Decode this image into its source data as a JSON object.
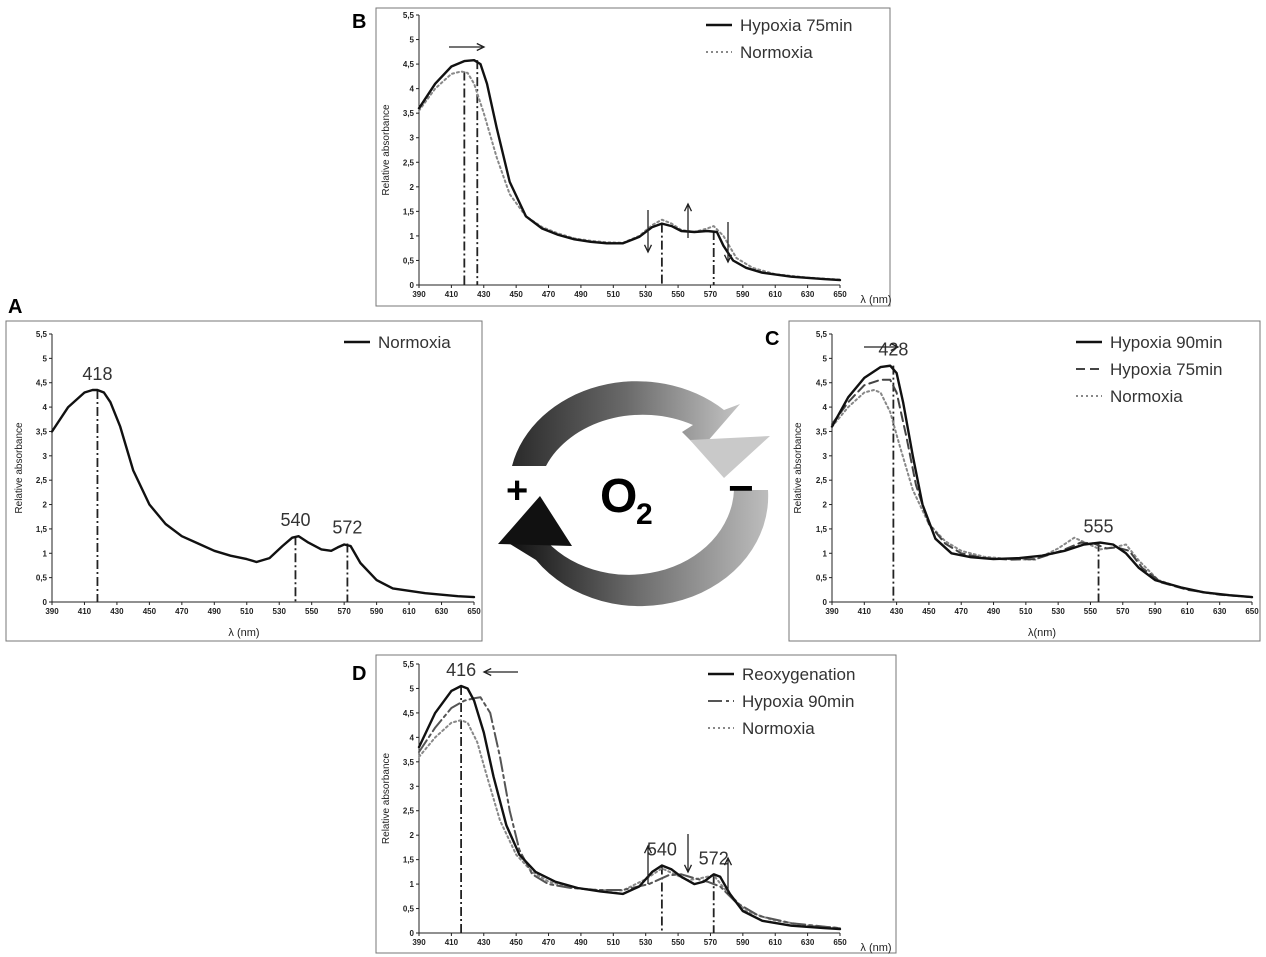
{
  "center": {
    "plus": "+",
    "minus": "−",
    "o2_main": "O",
    "o2_sub": "2"
  },
  "chart_data": [
    {
      "type": "line",
      "panel": "A",
      "xlabel": "λ (nm)",
      "ylabel": "Relative absorbance",
      "xlim": [
        390,
        650
      ],
      "ylim": [
        0,
        5.5
      ],
      "xticks": [
        "390",
        "410",
        "430",
        "450",
        "470",
        "490",
        "510",
        "530",
        "550",
        "570",
        "590",
        "610",
        "630",
        "650"
      ],
      "yticks": [
        "0",
        "0,5",
        "1",
        "1,5",
        "2",
        "2,5",
        "3",
        "3,5",
        "4",
        "4,5",
        "5",
        "5,5"
      ],
      "legend": "top-right",
      "series": [
        {
          "name": "Normoxia",
          "style": "solid",
          "color": "#111111",
          "x": [
            390,
            400,
            410,
            415,
            418,
            422,
            426,
            432,
            440,
            450,
            460,
            470,
            480,
            490,
            500,
            510,
            516,
            524,
            532,
            538,
            542,
            548,
            556,
            562,
            566,
            570,
            574,
            580,
            590,
            600,
            620,
            640,
            650
          ],
          "y": [
            3.5,
            4.0,
            4.3,
            4.35,
            4.35,
            4.3,
            4.1,
            3.6,
            2.7,
            2.0,
            1.6,
            1.35,
            1.2,
            1.05,
            0.95,
            0.88,
            0.82,
            0.9,
            1.15,
            1.32,
            1.35,
            1.22,
            1.08,
            1.05,
            1.12,
            1.18,
            1.15,
            0.8,
            0.45,
            0.28,
            0.18,
            0.12,
            0.1
          ]
        }
      ],
      "markers": [
        {
          "x": 418,
          "y": 4.35,
          "label": "418"
        },
        {
          "x": 540,
          "y": 1.35,
          "label": "540"
        },
        {
          "x": 572,
          "y": 1.2,
          "label": "572"
        }
      ]
    },
    {
      "type": "line",
      "panel": "B",
      "xlabel": "λ (nm)",
      "ylabel": "Relative absorbance",
      "xlim": [
        390,
        650
      ],
      "ylim": [
        0,
        5.5
      ],
      "xticks": [
        "390",
        "410",
        "430",
        "450",
        "470",
        "490",
        "510",
        "530",
        "550",
        "570",
        "590",
        "610",
        "630",
        "650"
      ],
      "yticks": [
        "0",
        "0,5",
        "1",
        "1,5",
        "2",
        "2,5",
        "3",
        "3,5",
        "4",
        "4,5",
        "5",
        "5,5"
      ],
      "legend": "top-right",
      "series": [
        {
          "name": "Hypoxia 75min",
          "style": "solid",
          "color": "#111111",
          "x": [
            390,
            400,
            410,
            418,
            424,
            428,
            432,
            438,
            446,
            456,
            466,
            476,
            486,
            496,
            506,
            516,
            526,
            534,
            540,
            546,
            552,
            560,
            568,
            574,
            578,
            584,
            592,
            602,
            620,
            640,
            650
          ],
          "y": [
            3.6,
            4.1,
            4.45,
            4.56,
            4.58,
            4.5,
            4.1,
            3.2,
            2.1,
            1.4,
            1.15,
            1.02,
            0.93,
            0.88,
            0.85,
            0.85,
            0.98,
            1.18,
            1.25,
            1.2,
            1.1,
            1.08,
            1.1,
            1.08,
            0.8,
            0.5,
            0.35,
            0.25,
            0.17,
            0.12,
            0.1
          ]
        },
        {
          "name": "Normoxia",
          "style": "dotted",
          "color": "#888888",
          "x": [
            390,
            400,
            410,
            416,
            420,
            424,
            430,
            438,
            446,
            456,
            466,
            476,
            486,
            496,
            506,
            516,
            526,
            534,
            540,
            546,
            552,
            560,
            568,
            572,
            578,
            586,
            596,
            610,
            630,
            650
          ],
          "y": [
            3.55,
            4.0,
            4.3,
            4.35,
            4.32,
            4.1,
            3.5,
            2.6,
            1.85,
            1.4,
            1.18,
            1.05,
            0.95,
            0.9,
            0.87,
            0.86,
            1.0,
            1.22,
            1.33,
            1.25,
            1.12,
            1.08,
            1.15,
            1.2,
            1.0,
            0.55,
            0.35,
            0.22,
            0.15,
            0.11
          ]
        }
      ],
      "markers": [
        {
          "x": 418,
          "y": 4.35,
          "label": ""
        },
        {
          "x": 426,
          "y": 4.58,
          "label": ""
        },
        {
          "x": 540,
          "y": 1.25,
          "label": ""
        },
        {
          "x": 572,
          "y": 1.1,
          "label": ""
        }
      ]
    },
    {
      "type": "line",
      "panel": "C",
      "xlabel": "λ(nm)",
      "ylabel": "Relative absorbance",
      "xlim": [
        390,
        650
      ],
      "ylim": [
        0,
        5.5
      ],
      "xticks": [
        "390",
        "410",
        "430",
        "450",
        "470",
        "490",
        "510",
        "530",
        "550",
        "570",
        "590",
        "610",
        "630",
        "650"
      ],
      "yticks": [
        "0",
        "0,5",
        "1",
        "1,5",
        "2",
        "2,5",
        "3",
        "3,5",
        "4",
        "4,5",
        "5",
        "5,5"
      ],
      "legend": "top-right",
      "series": [
        {
          "name": "Hypoxia 90min",
          "style": "solid",
          "color": "#111111",
          "x": [
            390,
            400,
            410,
            420,
            426,
            430,
            434,
            440,
            446,
            454,
            464,
            476,
            490,
            506,
            520,
            534,
            546,
            556,
            564,
            572,
            580,
            590,
            606,
            620,
            636,
            650
          ],
          "y": [
            3.6,
            4.2,
            4.6,
            4.82,
            4.85,
            4.7,
            4.1,
            3.0,
            2.0,
            1.3,
            1.0,
            0.92,
            0.88,
            0.9,
            0.95,
            1.05,
            1.18,
            1.22,
            1.18,
            1.0,
            0.7,
            0.45,
            0.3,
            0.2,
            0.14,
            0.1
          ]
        },
        {
          "name": "Hypoxia 75min",
          "style": "dashed",
          "color": "#444444",
          "x": [
            390,
            400,
            410,
            420,
            426,
            430,
            436,
            442,
            450,
            460,
            470,
            484,
            500,
            516,
            532,
            544,
            552,
            560,
            566,
            574,
            582,
            594,
            610,
            630,
            650
          ],
          "y": [
            3.65,
            4.1,
            4.45,
            4.56,
            4.56,
            4.3,
            3.4,
            2.4,
            1.6,
            1.2,
            1.0,
            0.9,
            0.87,
            0.88,
            1.05,
            1.22,
            1.2,
            1.1,
            1.12,
            1.05,
            0.7,
            0.4,
            0.25,
            0.15,
            0.1
          ]
        },
        {
          "name": "Normoxia",
          "style": "dotted",
          "color": "#888888",
          "x": [
            390,
            400,
            410,
            416,
            420,
            426,
            432,
            440,
            450,
            460,
            470,
            484,
            500,
            516,
            530,
            540,
            548,
            556,
            564,
            572,
            580,
            592,
            608,
            628,
            650
          ],
          "y": [
            3.6,
            4.0,
            4.3,
            4.35,
            4.3,
            3.9,
            3.2,
            2.3,
            1.6,
            1.25,
            1.05,
            0.93,
            0.88,
            0.87,
            1.1,
            1.32,
            1.2,
            1.08,
            1.12,
            1.18,
            0.85,
            0.45,
            0.27,
            0.16,
            0.1
          ]
        }
      ],
      "markers": [
        {
          "x": 428,
          "y": 4.85,
          "label": "428"
        },
        {
          "x": 555,
          "y": 1.22,
          "label": "555"
        }
      ]
    },
    {
      "type": "line",
      "panel": "D",
      "xlabel": "λ (nm)",
      "ylabel": "Relative absorbance",
      "xlim": [
        390,
        650
      ],
      "ylim": [
        0,
        5.5
      ],
      "xticks": [
        "390",
        "410",
        "430",
        "450",
        "470",
        "490",
        "510",
        "530",
        "550",
        "570",
        "590",
        "610",
        "630",
        "650"
      ],
      "yticks": [
        "0",
        "0,5",
        "1",
        "1,5",
        "2",
        "2,5",
        "3",
        "3,5",
        "4",
        "4,5",
        "5",
        "5,5"
      ],
      "legend": "top-right",
      "series": [
        {
          "name": "Reoxygenation",
          "style": "solid",
          "color": "#111111",
          "x": [
            390,
            400,
            410,
            416,
            420,
            424,
            430,
            436,
            444,
            452,
            462,
            474,
            488,
            502,
            516,
            526,
            534,
            540,
            546,
            552,
            560,
            566,
            572,
            576,
            582,
            590,
            602,
            620,
            640,
            650
          ],
          "y": [
            3.8,
            4.5,
            4.95,
            5.05,
            5.0,
            4.75,
            4.1,
            3.2,
            2.2,
            1.6,
            1.25,
            1.05,
            0.92,
            0.85,
            0.8,
            0.95,
            1.25,
            1.38,
            1.3,
            1.15,
            1.0,
            1.05,
            1.2,
            1.15,
            0.8,
            0.45,
            0.25,
            0.15,
            0.1,
            0.08
          ]
        },
        {
          "name": "Hypoxia 90min",
          "style": "dashdot",
          "color": "#555555",
          "x": [
            390,
            400,
            410,
            418,
            424,
            428,
            434,
            440,
            446,
            452,
            460,
            470,
            484,
            500,
            516,
            532,
            544,
            552,
            560,
            568,
            576,
            586,
            600,
            620,
            640,
            650
          ],
          "y": [
            3.7,
            4.2,
            4.6,
            4.75,
            4.8,
            4.82,
            4.5,
            3.6,
            2.5,
            1.7,
            1.2,
            1.0,
            0.92,
            0.88,
            0.88,
            1.0,
            1.18,
            1.2,
            1.12,
            1.05,
            0.95,
            0.62,
            0.35,
            0.2,
            0.13,
            0.1
          ]
        },
        {
          "name": "Normoxia",
          "style": "dotted",
          "color": "#888888",
          "x": [
            390,
            400,
            410,
            416,
            420,
            426,
            432,
            440,
            450,
            460,
            470,
            484,
            500,
            516,
            530,
            540,
            548,
            556,
            564,
            572,
            580,
            592,
            608,
            628,
            650
          ],
          "y": [
            3.6,
            4.0,
            4.3,
            4.35,
            4.3,
            3.9,
            3.2,
            2.3,
            1.6,
            1.25,
            1.05,
            0.93,
            0.88,
            0.87,
            1.1,
            1.32,
            1.2,
            1.08,
            1.12,
            1.18,
            0.85,
            0.45,
            0.27,
            0.16,
            0.1
          ]
        }
      ],
      "markers": [
        {
          "x": 416,
          "y": 5.05,
          "label": "416"
        },
        {
          "x": 540,
          "y": 1.38,
          "label": "540"
        },
        {
          "x": 572,
          "y": 1.2,
          "label": "572"
        }
      ]
    }
  ]
}
